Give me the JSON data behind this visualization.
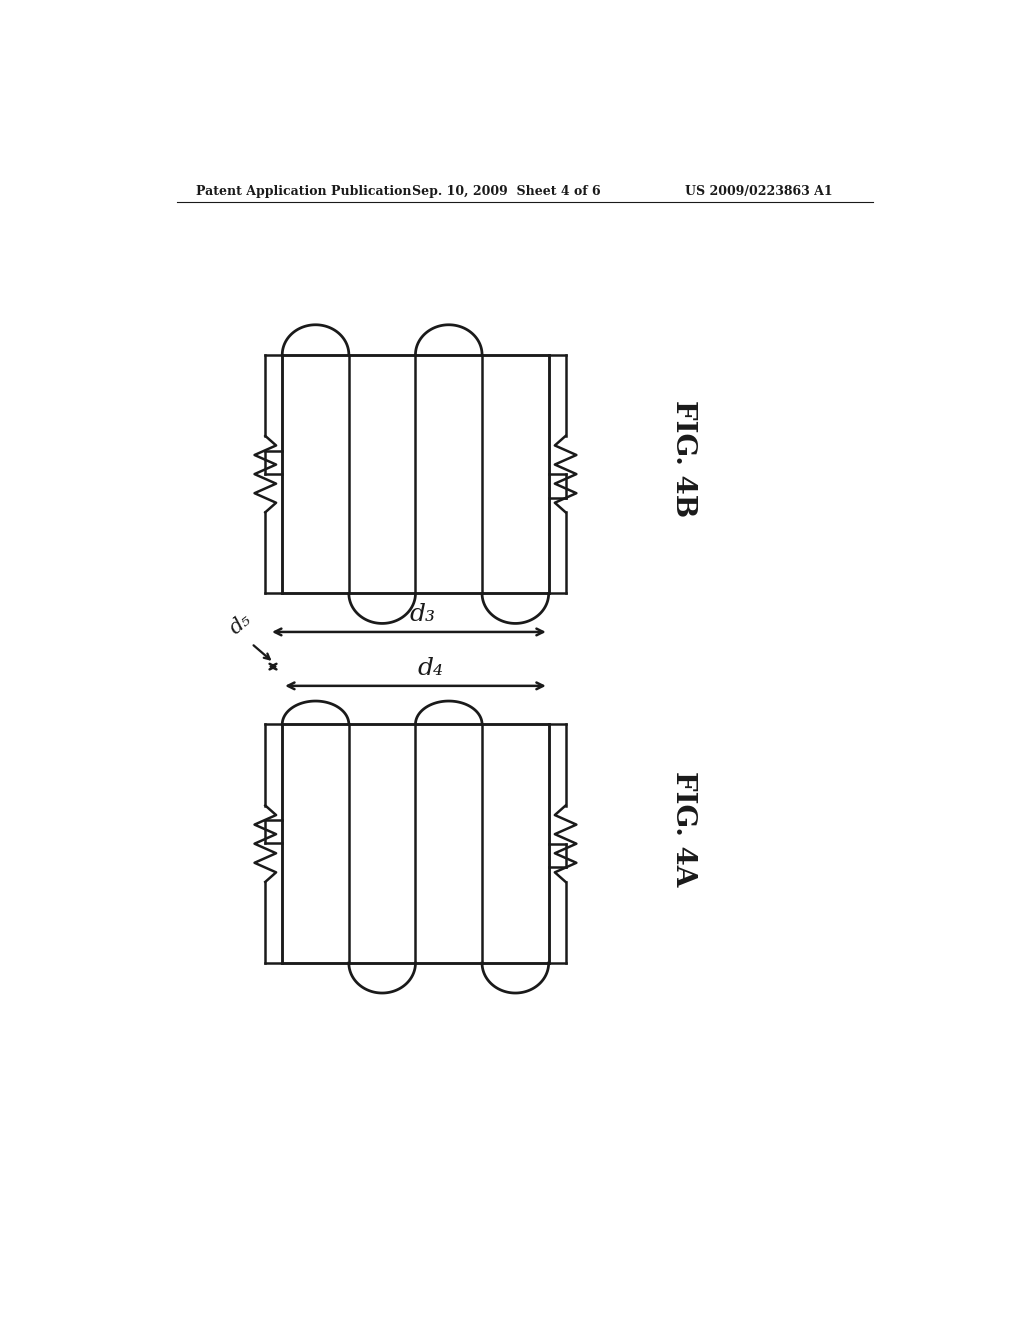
{
  "background_color": "#ffffff",
  "line_color": "#1a1a1a",
  "header_left": "Patent Application Publication",
  "header_center": "Sep. 10, 2009  Sheet 4 of 6",
  "header_right": "US 2009/0223863 A1",
  "fig4b_label": "FIG. 4B",
  "fig4a_label": "FIG. 4A",
  "d3_label": "d₃",
  "d4_label": "d₄",
  "d5_label": "d₅"
}
